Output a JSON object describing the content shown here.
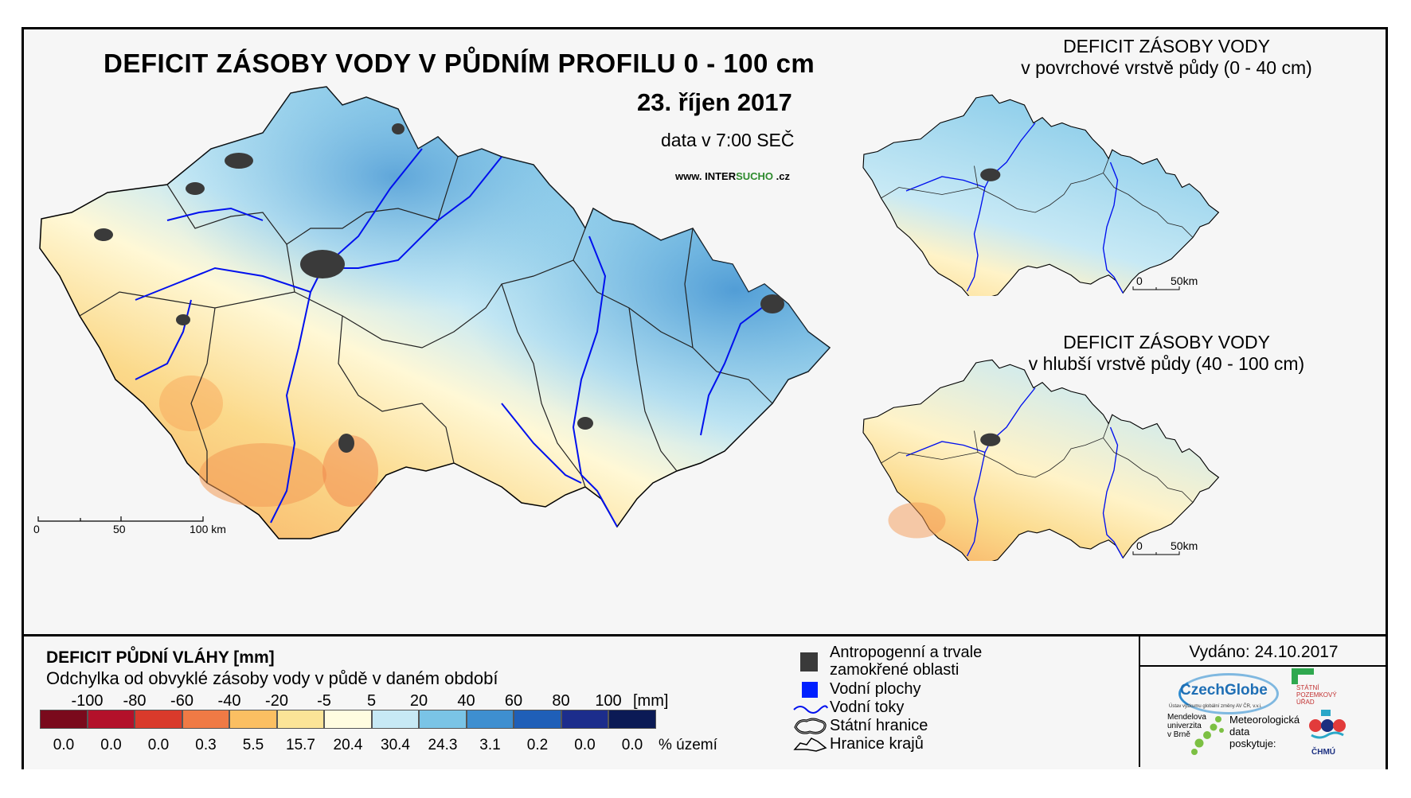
{
  "main_map": {
    "title": "DEFICIT ZÁSOBY VODY V PŮDNÍM PROFILU 0 - 100 cm",
    "date": "23. říjen 2017",
    "data_time": "data v 7:00 SEČ",
    "website_prefix": "www. INTER",
    "website_highlight": "SUCHO",
    "website_suffix": " .cz",
    "scale_ticks": [
      "0",
      "50",
      "100 km"
    ]
  },
  "inset_top": {
    "title_line1": "DEFICIT ZÁSOBY VODY",
    "title_line2": "v povrchové vrstvě půdy (0 - 40 cm)",
    "scale_ticks": [
      "0",
      "50km"
    ]
  },
  "inset_bottom": {
    "title_line1": "DEFICIT ZÁSOBY VODY",
    "title_line2": "v hlubší vrstvě půdy (40 - 100 cm)",
    "scale_ticks": [
      "0",
      "50km"
    ]
  },
  "legend": {
    "title": "DEFICIT PŮDNÍ VLÁHY [mm]",
    "subtitle": "Odchylka od obvyklé zásoby vody v půdě v daném období",
    "class_breaks": [
      "-100",
      "-80",
      "-60",
      "-40",
      "-20",
      "-5",
      "5",
      "20",
      "40",
      "60",
      "80",
      "100"
    ],
    "unit": "[mm]",
    "classes": [
      {
        "color": "#7a0a1c",
        "percent": "0.0"
      },
      {
        "color": "#b3112a",
        "percent": "0.0"
      },
      {
        "color": "#d93a2b",
        "percent": "0.0"
      },
      {
        "color": "#f07a45",
        "percent": "0.3"
      },
      {
        "color": "#fbbf62",
        "percent": "5.5"
      },
      {
        "color": "#fbe497",
        "percent": "15.7"
      },
      {
        "color": "#fffce0",
        "percent": "20.4"
      },
      {
        "color": "#c7e9f5",
        "percent": "30.4"
      },
      {
        "color": "#7ac4e6",
        "percent": "24.3"
      },
      {
        "color": "#3e8fd0",
        "percent": "3.1"
      },
      {
        "color": "#1f5fb8",
        "percent": "0.2"
      },
      {
        "color": "#1c2d8c",
        "percent": "0.0"
      },
      {
        "color": "#0b1a55",
        "percent": "0.0"
      }
    ],
    "percent_unit": "% území"
  },
  "symbols": [
    {
      "name": "anthropogenic",
      "label_line1": "Antropogenní a trvale",
      "label_line2": "zamokřené oblasti",
      "color": "#3a3a3a"
    },
    {
      "name": "water-bodies",
      "label_line1": "Vodní plochy",
      "color": "#0020ff"
    },
    {
      "name": "rivers",
      "label_line1": "Vodní toky",
      "color": "#0010ee"
    },
    {
      "name": "state-border",
      "label_line1": "Státní hranice"
    },
    {
      "name": "region-border",
      "label_line1": "Hranice krajů"
    }
  ],
  "issued": "Vydáno: 24.10.2017",
  "logos": {
    "czechglobe": "CzechGlobe",
    "czechglobe_sub": "Ústav výzkumu globální změny AV ČR, v.v.i.",
    "spu": [
      "STÁTNÍ",
      "POZEMKOVÝ",
      "ÚŘAD"
    ],
    "mendelu": [
      "Mendelova",
      "univerzita",
      "v Brně"
    ],
    "met_data": [
      "Meteorologická",
      "data",
      "poskytuje:"
    ],
    "chmu": "ČHMÚ"
  }
}
